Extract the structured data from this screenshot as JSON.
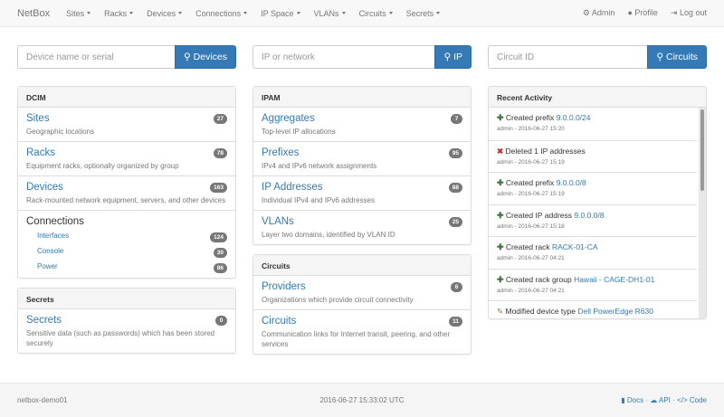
{
  "nav": {
    "brand": "NetBox",
    "menus": [
      "Sites",
      "Racks",
      "Devices",
      "Connections",
      "IP Space",
      "VLANs",
      "Circuits",
      "Secrets"
    ],
    "admin": "Admin",
    "profile": "Profile",
    "logout": "Log out"
  },
  "search": [
    {
      "placeholder": "Device name or serial",
      "button": "Devices"
    },
    {
      "placeholder": "IP or network",
      "button": "IP"
    },
    {
      "placeholder": "Circuit ID",
      "button": "Circuits"
    }
  ],
  "dcim": {
    "title": "DCIM",
    "items": [
      {
        "title": "Sites",
        "desc": "Geographic locations",
        "count": "27"
      },
      {
        "title": "Racks",
        "desc": "Equipment racks, optionally organized by group",
        "count": "78"
      },
      {
        "title": "Devices",
        "desc": "Rack-mounted network equipment, servers, and other devices",
        "count": "163"
      }
    ],
    "connections": {
      "title": "Connections",
      "items": [
        {
          "label": "Interfaces",
          "count": "124"
        },
        {
          "label": "Console",
          "count": "30"
        },
        {
          "label": "Power",
          "count": "86"
        }
      ]
    }
  },
  "secrets": {
    "title": "Secrets",
    "items": [
      {
        "title": "Secrets",
        "desc": "Sensitive data (such as passwords) which has been stored securely",
        "count": "0"
      }
    ]
  },
  "ipam": {
    "title": "IPAM",
    "items": [
      {
        "title": "Aggregates",
        "desc": "Top-level IP allocations",
        "count": "7"
      },
      {
        "title": "Prefixes",
        "desc": "IPv4 and IPv6 network assignments",
        "count": "95"
      },
      {
        "title": "IP Addresses",
        "desc": "Individual IPv4 and IPv6 addresses",
        "count": "88"
      },
      {
        "title": "VLANs",
        "desc": "Layer two domains, identified by VLAN ID",
        "count": "25"
      }
    ]
  },
  "circuits": {
    "title": "Circuits",
    "items": [
      {
        "title": "Providers",
        "desc": "Organizations which provide circuit connectivity",
        "count": "6"
      },
      {
        "title": "Circuits",
        "desc": "Communication links for Internet transit, peering, and other services",
        "count": "11"
      }
    ]
  },
  "activity": {
    "title": "Recent Activity",
    "items": [
      {
        "icon": "plus",
        "text": "Created prefix",
        "link": "9.0.0.0/24",
        "meta": "admin - 2016-06-27 15:20"
      },
      {
        "icon": "x",
        "text": "Deleted 1 IP addresses",
        "link": "",
        "meta": "admin - 2016-06-27 15:19"
      },
      {
        "icon": "plus",
        "text": "Created prefix",
        "link": "9.0.0.0/8",
        "meta": "admin - 2016-06-27 15:19"
      },
      {
        "icon": "plus",
        "text": "Created IP address",
        "link": "9.0.0.0/8",
        "meta": "admin - 2016-06-27 15:18"
      },
      {
        "icon": "plus",
        "text": "Created rack",
        "link": "RACK-01-CA",
        "meta": "admin - 2016-06-27 04:21"
      },
      {
        "icon": "plus",
        "text": "Created rack group",
        "link": "Hawaii - CAGE-DH1-01",
        "meta": "admin - 2016-06-27 04:21"
      },
      {
        "icon": "pencil",
        "text": "Modified device type",
        "link": "Dell PowerEdge R630",
        "meta": ""
      }
    ]
  },
  "footer": {
    "host": "netbox-demo01",
    "time": "2016-06-27 15:33:02 UTC",
    "docs": "Docs",
    "api": "API",
    "code": "Code",
    "sep": "·"
  },
  "colors": {
    "link": "#337ab7",
    "badge": "#777777",
    "created": "#3c763d",
    "deleted": "#c9302c"
  }
}
